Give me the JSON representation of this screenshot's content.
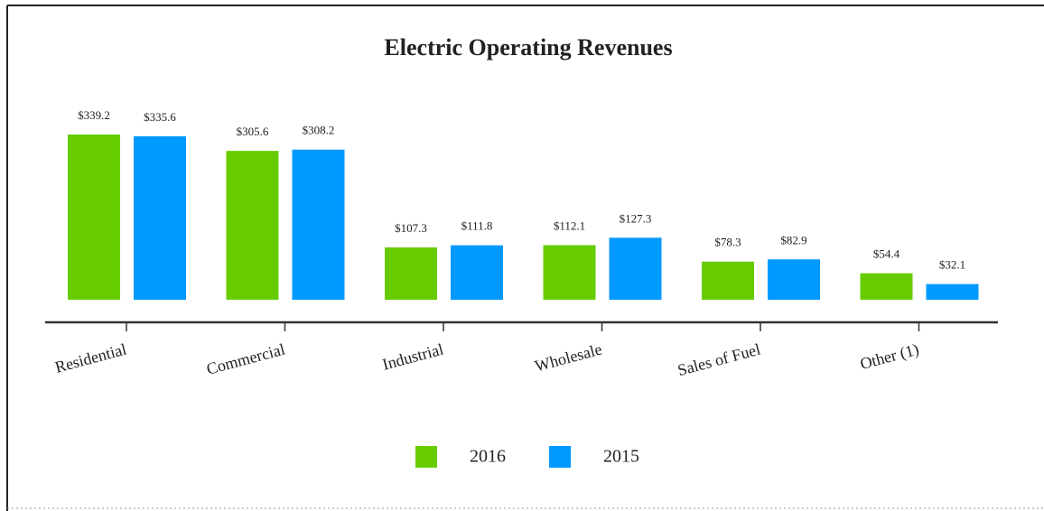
{
  "chart_data": {
    "type": "bar",
    "title": "Electric Operating Revenues",
    "categories": [
      "Residential",
      "Commercial",
      "Industrial",
      "Wholesale",
      "Sales of Fuel",
      "Other (1)"
    ],
    "series": [
      {
        "name": "2016",
        "color": "#66cc00",
        "values": [
          339.2,
          305.6,
          107.3,
          112.1,
          78.3,
          54.4
        ],
        "value_labels": [
          "$339.2",
          "$305.6",
          "$107.3",
          "$112.1",
          "$78.3",
          "$54.4"
        ]
      },
      {
        "name": "2015",
        "color": "#0099ff",
        "values": [
          335.6,
          308.2,
          111.8,
          127.3,
          82.9,
          32.1
        ],
        "value_labels": [
          "$335.6",
          "$308.2",
          "$111.8",
          "$127.3",
          "$82.9",
          "$32.1"
        ]
      }
    ],
    "legend": "bottom"
  }
}
